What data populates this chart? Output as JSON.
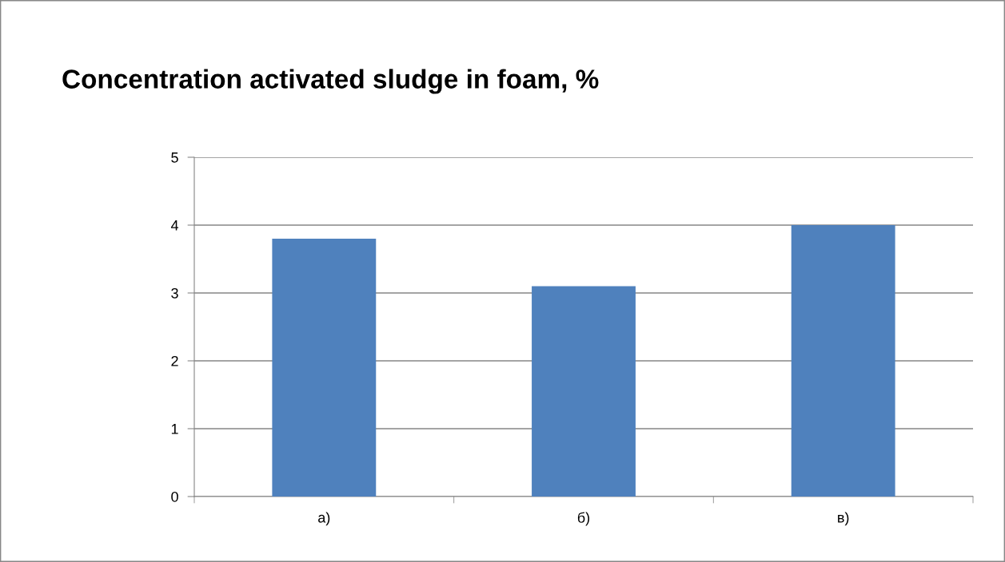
{
  "chart_data": {
    "type": "bar",
    "title": "Concentration activated sludge in foam, %",
    "categories": [
      "а)",
      "б)",
      "в)"
    ],
    "values": [
      3.8,
      3.1,
      4.0
    ],
    "color": "#4f81bd",
    "ylim": [
      0,
      5
    ],
    "yticks": [
      0,
      1,
      2,
      3,
      4,
      5
    ],
    "grid": "y"
  }
}
